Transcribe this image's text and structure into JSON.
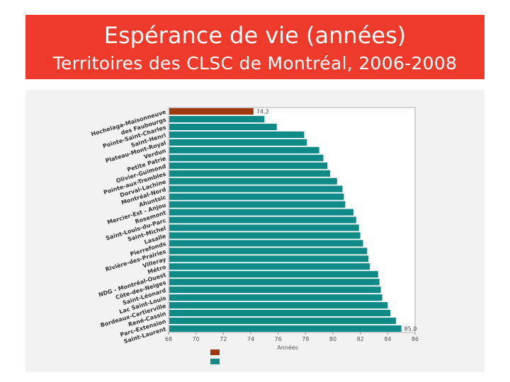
{
  "header": {
    "title": "Espérance de vie (années)",
    "subtitle": "Territoires des CLSC de Montréal, 2006-2008"
  },
  "colors": {
    "banner": "#ee3a2a",
    "bar_highlight": "#a0380f",
    "bar_default": "#0f8a86"
  },
  "chart_data": {
    "type": "bar",
    "orientation": "horizontal",
    "title": "",
    "xlabel": "Années",
    "xlim": [
      68,
      86
    ],
    "xticks": [
      68,
      70,
      72,
      74,
      76,
      78,
      80,
      82,
      84,
      86
    ],
    "grid": false,
    "categories": [
      "Hochelaga-Maisonneuve",
      "des Faubourgs",
      "Pointe-Saint-Charles",
      "Saint-Henri",
      "Plateau-Mont-Royal",
      "Verdun",
      "Petite Patrie",
      "Olivier-Guimond",
      "Pointe-aux-Trembles",
      "Dorval-Lachine",
      "Montréal-Nord",
      "Ahuntsic",
      "Mercier-Est - Anjou",
      "Rosemont",
      "Saint-Louis-du-Parc",
      "Saint-Michel",
      "Lasalle",
      "Pierrefonds",
      "Rivière-des-Prairies",
      "Villeray",
      "Métro",
      "NDG - Montréal-Ouest",
      "Côte-des-Neiges",
      "Saint-Léonard",
      "Lac Saint-Louis",
      "Bordeaux-Cartierville",
      "René-Cassin",
      "Parc-Extension",
      "Saint-Laurent"
    ],
    "values": [
      74.2,
      75.0,
      75.9,
      77.9,
      78.1,
      79.0,
      79.3,
      79.6,
      79.8,
      80.3,
      80.7,
      80.8,
      80.9,
      81.5,
      81.7,
      81.9,
      82.0,
      82.2,
      82.5,
      82.6,
      82.7,
      83.3,
      83.4,
      83.5,
      83.6,
      84.0,
      84.2,
      84.6,
      85.0
    ],
    "highlight_index": 0,
    "data_labels": [
      {
        "index": 0,
        "text": "74,2"
      },
      {
        "index": 28,
        "text": "85,0"
      }
    ],
    "legend": {
      "placement": "bottom",
      "entries": [
        {
          "color": "#a0380f"
        },
        {
          "color": "#0f8a86"
        }
      ]
    }
  }
}
